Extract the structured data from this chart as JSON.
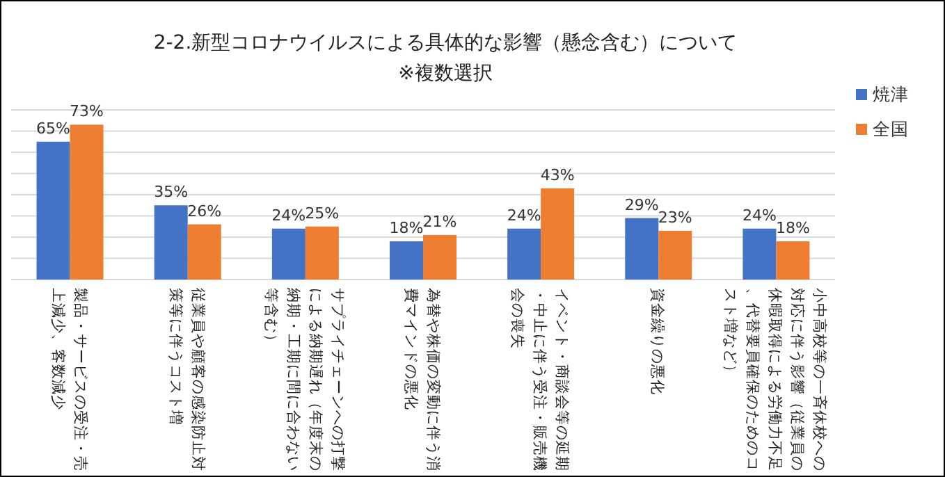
{
  "chart_data": {
    "type": "bar",
    "title": "2-2.新型コロナウイルスによる具体的な影響（懸念含む）について",
    "subtitle": "※複数選択",
    "categories": [
      "製品・サービスの受注・売上減少、客数減少",
      "従業員や顧客の感染防止対策等に伴うコスト増",
      "サプライチェーンへの打撃による納期遅れ（年度末の納期・工期に間に合わない等含む）",
      "為替や株価の変動に伴う消費マインドの悪化",
      "イベント・商談会等の延期・中止に伴う受注・販売機会の喪失",
      "資金繰りの悪化",
      "小中高校等の一斉休校への対応に伴う影響（従業員の休暇取得による労働力不足、代替要員確保のためのコスト増など）"
    ],
    "series": [
      {
        "name": "焼津",
        "color": "#4472c4",
        "values": [
          65,
          35,
          24,
          18,
          24,
          29,
          24
        ],
        "value_labels": [
          "65%",
          "35%",
          "24%",
          "18%",
          "24%",
          "29%",
          "24%"
        ]
      },
      {
        "name": "全国",
        "color": "#ed7d31",
        "values": [
          73,
          26,
          25,
          21,
          43,
          23,
          18
        ],
        "value_labels": [
          "73%",
          "26%",
          "25%",
          "21%",
          "43%",
          "23%",
          "18%"
        ]
      }
    ],
    "ylim": [
      0,
      80
    ],
    "yticks": [
      {
        "value": 0,
        "label": null
      },
      {
        "value": 10,
        "label": null
      },
      {
        "value": 20,
        "label": null
      },
      {
        "value": 30,
        "label": null
      },
      {
        "value": 40,
        "label": null
      },
      {
        "value": 50,
        "label": null
      },
      {
        "value": 60,
        "label": null
      },
      {
        "value": 70,
        "label": null
      },
      {
        "value": 80,
        "label": null
      }
    ],
    "tick_labels": "x",
    "grid": "y",
    "legend": "right"
  }
}
